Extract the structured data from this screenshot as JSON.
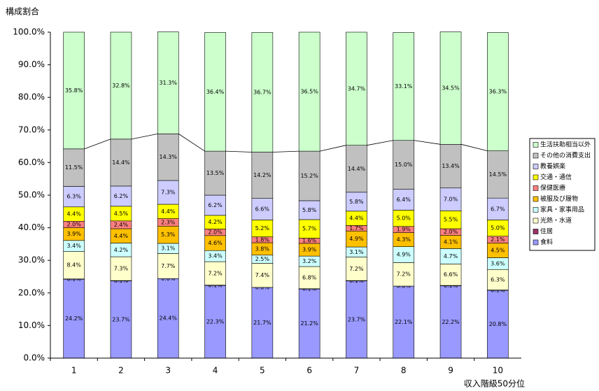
{
  "chart_data": {
    "type": "stacked_bar",
    "y_label": "構成割合",
    "x_label": "収入階級50分位",
    "categories": [
      "1",
      "2",
      "3",
      "4",
      "5",
      "6",
      "7",
      "8",
      "9",
      "10"
    ],
    "ylim": [
      0,
      100
    ],
    "yticks": [
      {
        "value": 0,
        "label": "0.0%"
      },
      {
        "value": 10,
        "label": "10.0%"
      },
      {
        "value": 20,
        "label": "20.0%"
      },
      {
        "value": 30,
        "label": "30.0%"
      },
      {
        "value": 40,
        "label": "40.0%"
      },
      {
        "value": 50,
        "label": "50.0%"
      },
      {
        "value": 60,
        "label": "60.0%"
      },
      {
        "value": 70,
        "label": "70.0%"
      },
      {
        "value": 80,
        "label": "80.0%"
      },
      {
        "value": 90,
        "label": "90.0%"
      },
      {
        "value": 100,
        "label": "100.0%"
      }
    ],
    "grid": false,
    "legend": "right",
    "series": [
      {
        "name": "食料",
        "color": "#9999ff",
        "values": [
          24.2,
          23.7,
          24.4,
          22.3,
          21.7,
          21.2,
          23.7,
          22.1,
          22.2,
          20.8
        ],
        "value_labels": [
          "24.2%",
          "23.7%",
          "24.4%",
          "22.3%",
          "21.7%",
          "21.2%",
          "23.7%",
          "22.1%",
          "22.2%",
          "20.8%"
        ]
      },
      {
        "name": "住居",
        "color": "#993366",
        "values": [
          0.1,
          0.1,
          0.0,
          0.1,
          0.0,
          0.1,
          0.1,
          0.0,
          0.1,
          0.1
        ],
        "value_labels": [
          "0.1%",
          "0.1%",
          "0.0%",
          "0.1%",
          "0.0%",
          "0.1%",
          "0.1%",
          "0.0%",
          "0.1%",
          "0.1%"
        ]
      },
      {
        "name": "光熱・水道",
        "color": "#ffffcc",
        "values": [
          8.4,
          7.3,
          7.7,
          7.2,
          7.4,
          6.8,
          7.2,
          7.2,
          6.6,
          6.3
        ],
        "value_labels": [
          "8.4%",
          "7.3%",
          "7.7%",
          "7.2%",
          "7.4%",
          "6.8%",
          "7.2%",
          "7.2%",
          "6.6%",
          "6.3%"
        ]
      },
      {
        "name": "家具・家事用品",
        "color": "#ccffff",
        "values": [
          3.4,
          4.2,
          3.1,
          3.4,
          2.5,
          3.2,
          3.1,
          4.9,
          4.7,
          3.6
        ],
        "value_labels": [
          "3.4%",
          "4.2%",
          "3.1%",
          "3.4%",
          "2.5%",
          "3.2%",
          "3.1%",
          "4.9%",
          "4.7%",
          "3.6%"
        ]
      },
      {
        "name": "被服及び履物",
        "color": "#ffc000",
        "values": [
          3.9,
          4.4,
          5.3,
          4.6,
          3.8,
          3.9,
          4.9,
          4.3,
          4.1,
          4.5
        ],
        "value_labels": [
          "3.9%",
          "4.4%",
          "5.3%",
          "4.6%",
          "3.8%",
          "3.9%",
          "4.9%",
          "4.3%",
          "4.1%",
          "4.5%"
        ]
      },
      {
        "name": "保健医療",
        "color": "#ff8080",
        "values": [
          2.0,
          2.4,
          2.3,
          2.0,
          1.8,
          1.6,
          1.7,
          1.9,
          2.0,
          2.1
        ],
        "value_labels": [
          "2.0%",
          "2.4%",
          "2.3%",
          "2.0%",
          "1.8%",
          "1.6%",
          "1.7%",
          "1.9%",
          "2.0%",
          "2.1%"
        ]
      },
      {
        "name": "交通・通信",
        "color": "#ffff00",
        "values": [
          4.4,
          4.5,
          4.4,
          4.2,
          5.2,
          5.7,
          4.4,
          5.0,
          5.5,
          5.0
        ],
        "value_labels": [
          "4.4%",
          "4.5%",
          "4.4%",
          "4.2%",
          "5.2%",
          "5.7%",
          "4.4%",
          "5.0%",
          "5.5%",
          "5.0%"
        ]
      },
      {
        "name": "教養娯楽",
        "color": "#ccccff",
        "values": [
          6.3,
          6.2,
          7.3,
          6.2,
          6.6,
          5.8,
          5.8,
          6.4,
          7.0,
          6.7
        ],
        "value_labels": [
          "6.3%",
          "6.2%",
          "7.3%",
          "6.2%",
          "6.6%",
          "5.8%",
          "5.8%",
          "6.4%",
          "7.0%",
          "6.7%"
        ]
      },
      {
        "name": "その他の消費支出",
        "color": "#c0c0c0",
        "values": [
          11.5,
          14.4,
          14.3,
          13.5,
          14.2,
          15.2,
          14.4,
          15.0,
          13.4,
          14.5
        ],
        "value_labels": [
          "11.5%",
          "14.4%",
          "14.3%",
          "13.5%",
          "14.2%",
          "15.2%",
          "14.4%",
          "15.0%",
          "13.4%",
          "14.5%"
        ]
      },
      {
        "name": "生活扶助相当以外",
        "color": "#ccffcc",
        "values": [
          35.8,
          32.8,
          31.3,
          36.4,
          36.7,
          36.5,
          34.7,
          33.1,
          34.5,
          36.3
        ],
        "value_labels": [
          "35.8%",
          "32.8%",
          "31.3%",
          "36.4%",
          "36.7%",
          "36.5%",
          "34.7%",
          "33.1%",
          "34.5%",
          "36.3%"
        ]
      }
    ]
  }
}
